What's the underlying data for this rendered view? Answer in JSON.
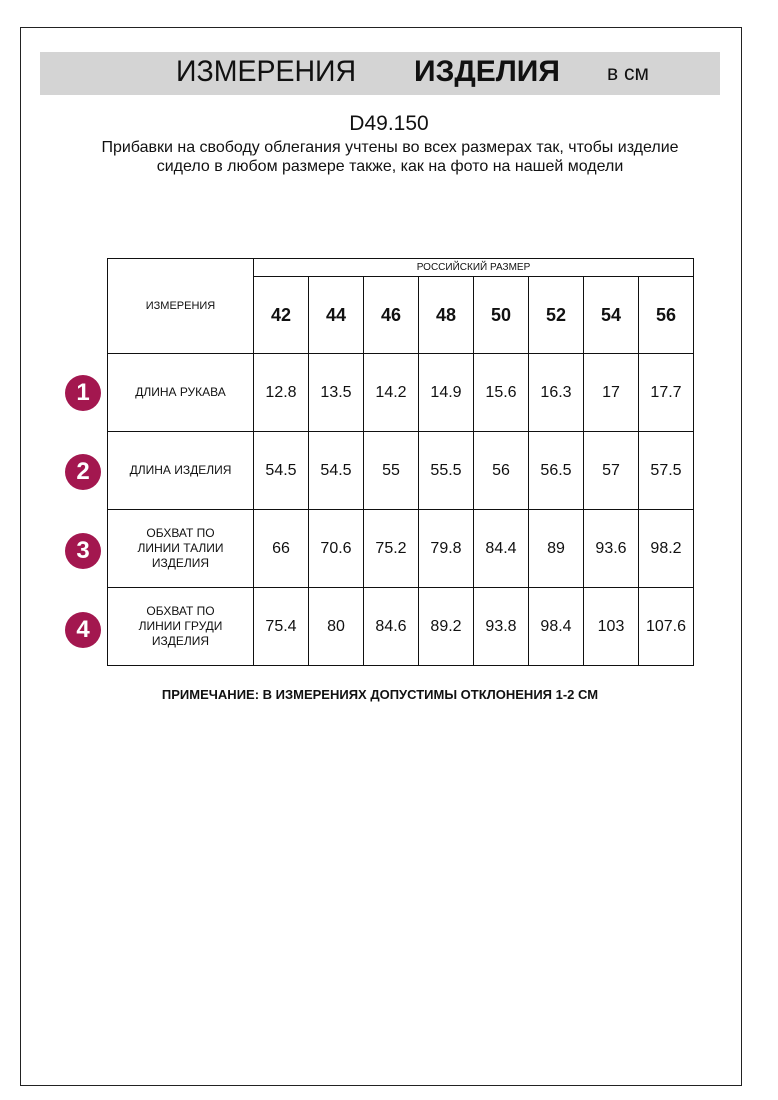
{
  "header": {
    "title_regular": "ИЗМЕРЕНИЯ",
    "title_bold": "ИЗДЕЛИЯ",
    "unit": "в см"
  },
  "code": "D49.150",
  "description": "Прибавки на свободу облегания учтены во всех размерах так, чтобы изделие сидело в любом размере также, как на фото на нашей модели",
  "table": {
    "measure_header": "ИЗМЕРЕНИЯ",
    "size_header": "РОССИЙСКИЙ РАЗМЕР",
    "sizes": [
      "42",
      "44",
      "46",
      "48",
      "50",
      "52",
      "54",
      "56"
    ],
    "rows": [
      {
        "num": "1",
        "label": "ДЛИНА РУКАВА",
        "values": [
          "12.8",
          "13.5",
          "14.2",
          "14.9",
          "15.6",
          "16.3",
          "17",
          "17.7"
        ]
      },
      {
        "num": "2",
        "label": "ДЛИНА ИЗДЕЛИЯ",
        "values": [
          "54.5",
          "54.5",
          "55",
          "55.5",
          "56",
          "56.5",
          "57",
          "57.5"
        ]
      },
      {
        "num": "3",
        "label": "ОБХВАТ ПО ЛИНИИ ТАЛИИ ИЗДЕЛИЯ",
        "values": [
          "66",
          "70.6",
          "75.2",
          "79.8",
          "84.4",
          "89",
          "93.6",
          "98.2"
        ]
      },
      {
        "num": "4",
        "label": "ОБХВАТ ПО ЛИНИИ ГРУДИ ИЗДЕЛИЯ",
        "values": [
          "75.4",
          "80",
          "84.6",
          "89.2",
          "93.8",
          "98.4",
          "103",
          "107.6"
        ]
      }
    ]
  },
  "note": "ПРИМЕЧАНИЕ: В ИЗМЕРЕНИЯХ ДОПУСТИМЫ ОТКЛОНЕНИЯ 1-2 СМ",
  "colors": {
    "badge": "#a3174f",
    "header_bar": "#d4d4d4"
  }
}
